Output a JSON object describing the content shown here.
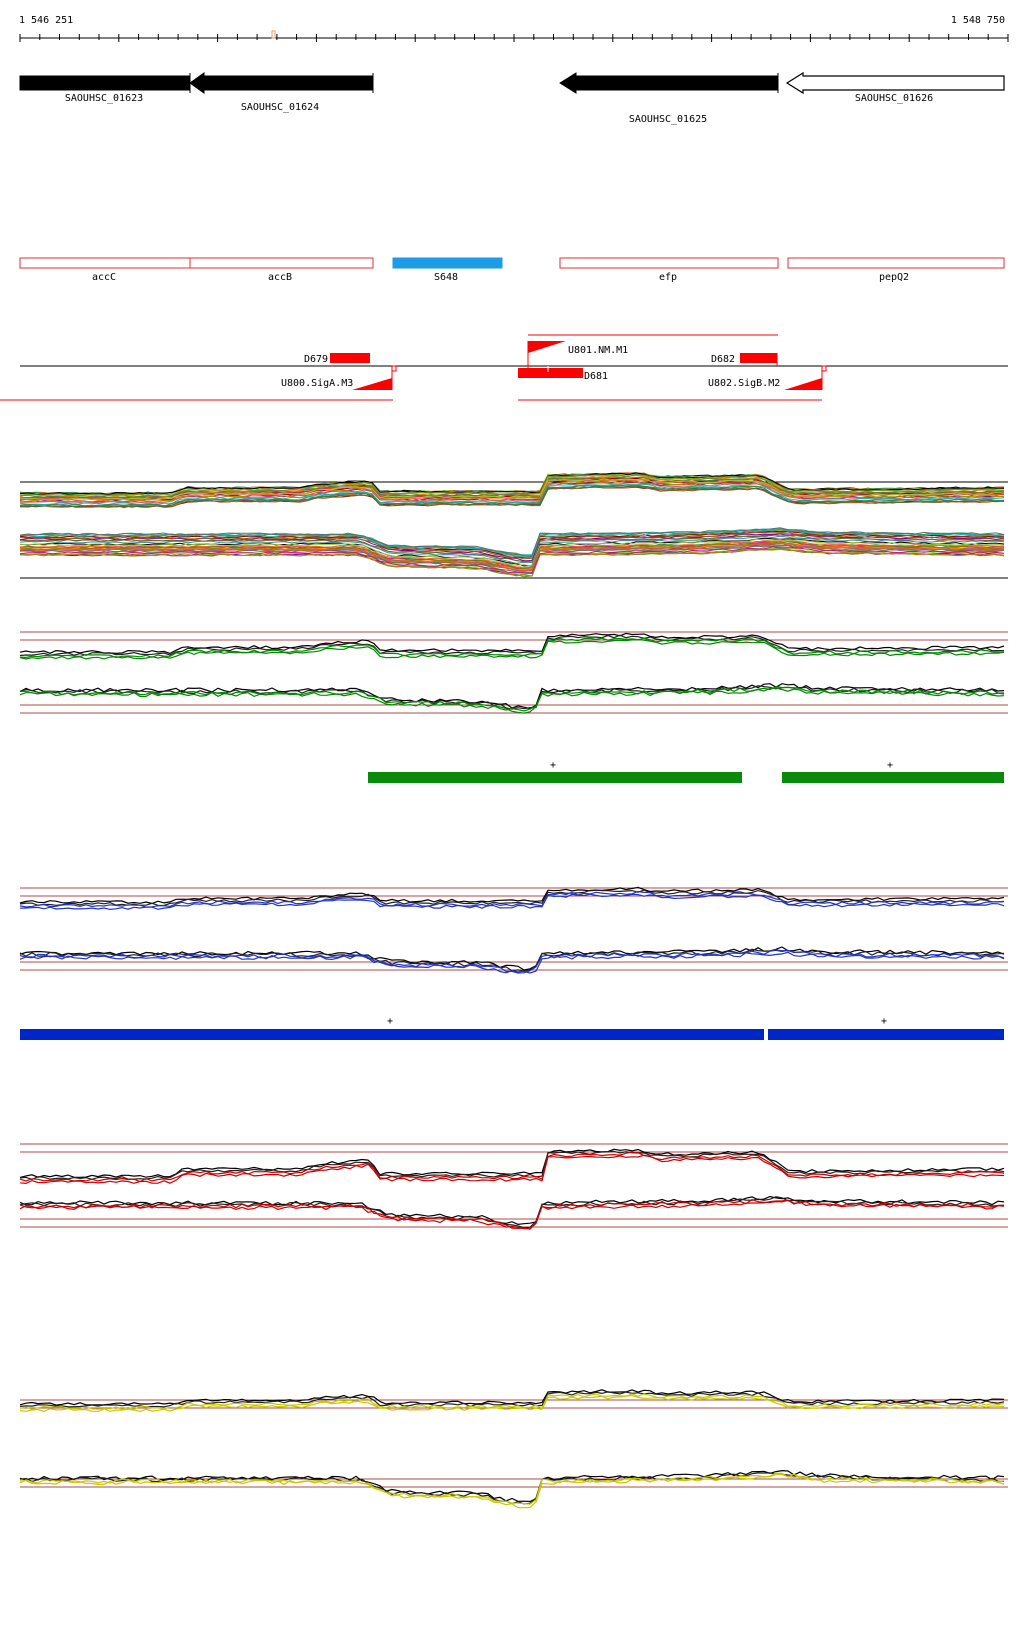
{
  "ruler": {
    "start_label": "1 546 251",
    "end_label": "1 548 750",
    "start": 1546251,
    "end": 1548750
  },
  "genes": [
    {
      "label": "SAOUHSC_01623",
      "strand": "-",
      "fill": "#000000"
    },
    {
      "label": "SAOUHSC_01624",
      "strand": "-",
      "fill": "#000000"
    },
    {
      "label": "SAOUHSC_01625",
      "strand": "-",
      "fill": "#000000"
    },
    {
      "label": "SAOUHSC_01626",
      "strand": "-",
      "fill": "#ffffff"
    }
  ],
  "annotations": [
    {
      "label": "accC",
      "color": "#e03030"
    },
    {
      "label": "accB",
      "color": "#e03030"
    },
    {
      "label": "S648",
      "color": "#1e9be6"
    },
    {
      "label": "efp",
      "color": "#e03030"
    },
    {
      "label": "pepQ2",
      "color": "#e03030"
    }
  ],
  "features": {
    "D679": "D679",
    "D681": "D681",
    "D682": "D682",
    "U800": "U800.SigA.M3",
    "U801": "U801.NM.M1",
    "U802": "U802.SigB.M2"
  },
  "segment_marks": {
    "green": [
      "+",
      "+"
    ],
    "blue": [
      "+",
      "+"
    ]
  },
  "colors": {
    "feature_red": "#ff0000",
    "green_track": "#008a00",
    "green_segment": "#0a8a0a",
    "blue_track": "#2233cc",
    "blue_segment": "#0026c8",
    "red_track": "#cc0000",
    "yellow_track": "#c8c800",
    "reference_line": "#b04848"
  }
}
